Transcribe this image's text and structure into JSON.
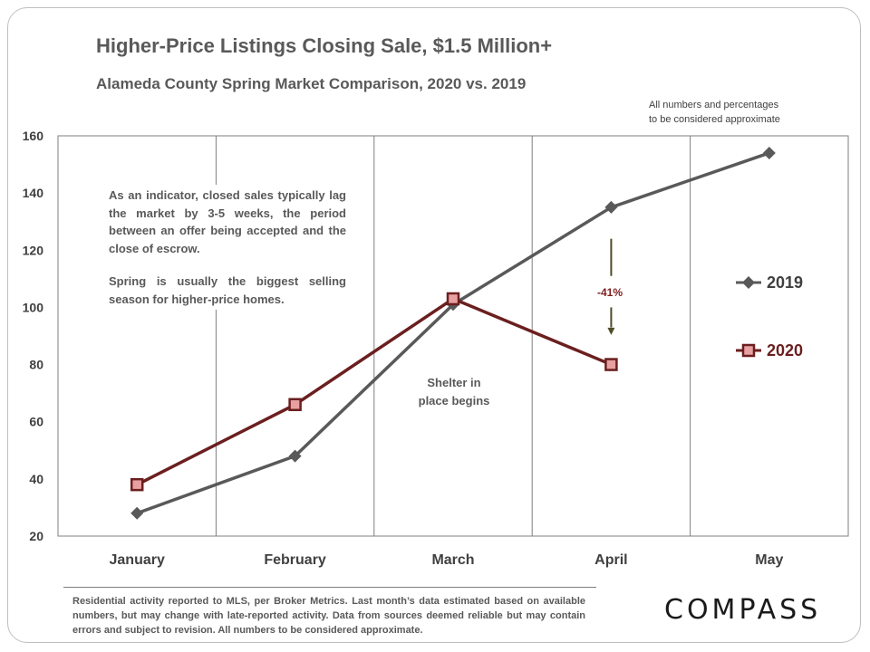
{
  "header": {
    "title": "Higher-Price Listings Closing Sale, $1.5 Million+",
    "subtitle": "Alameda County Spring Market Comparison,  2020 vs. 2019",
    "approx_note_line1": "All numbers and percentages",
    "approx_note_line2": "to be considered approximate"
  },
  "annotations": {
    "indicator_p1": "As an indicator, closed sales typically lag the market by 3-5 weeks, the period between an offer being accepted and the close of escrow.",
    "indicator_p2": "Spring is usually the biggest selling season for higher-price homes.",
    "shelter_line1": "Shelter in",
    "shelter_line2": "place begins",
    "change_pct": "-41%"
  },
  "chart_data": {
    "type": "line",
    "categories": [
      "January",
      "February",
      "March",
      "April",
      "May"
    ],
    "ylim": [
      20,
      160
    ],
    "yticks": [
      20,
      40,
      60,
      80,
      100,
      120,
      140,
      160
    ],
    "grid": "vertical",
    "legend_position": "right",
    "series": [
      {
        "name": "2019",
        "color": "#595959",
        "marker": "diamond",
        "values": [
          28,
          48,
          101,
          135,
          154
        ]
      },
      {
        "name": "2020",
        "color": "#6b1f1f",
        "marker": "square",
        "values": [
          38,
          66,
          103,
          80,
          null
        ]
      }
    ]
  },
  "footer": {
    "note": "Residential activity reported to MLS, per Broker Metrics. Last month’s data estimated based on available numbers, but may change with late-reported activity. Data from sources deemed reliable but may contain errors and subject to revision. All numbers to be considered approximate.",
    "logo": "COMPASS"
  }
}
